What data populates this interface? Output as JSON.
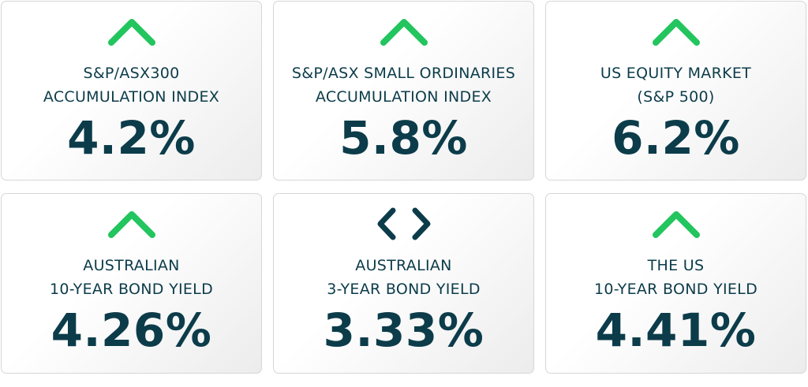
{
  "colors": {
    "up": "#22c55e",
    "neutral": "#0c3c4a",
    "text": "#0c3c4a"
  },
  "cards": [
    {
      "icon": "chevron-up-icon",
      "label": "S&P/ASX300\nACCUMULATION INDEX",
      "value": "4.2%"
    },
    {
      "icon": "chevron-up-icon",
      "label": "S&P/ASX SMALL ORDINARIES\nACCUMULATION INDEX",
      "value": "5.8%"
    },
    {
      "icon": "chevron-up-icon",
      "label": "US EQUITY MARKET\n(S&P 500)",
      "value": "6.2%"
    },
    {
      "icon": "chevron-up-icon",
      "label": "AUSTRALIAN\n10-YEAR BOND YIELD",
      "value": "4.26%"
    },
    {
      "icon": "left-right-chevrons-icon",
      "label": "AUSTRALIAN\n3-YEAR BOND YIELD",
      "value": "3.33%"
    },
    {
      "icon": "chevron-up-icon",
      "label": "THE US\n10-YEAR BOND YIELD",
      "value": "4.41%"
    }
  ]
}
